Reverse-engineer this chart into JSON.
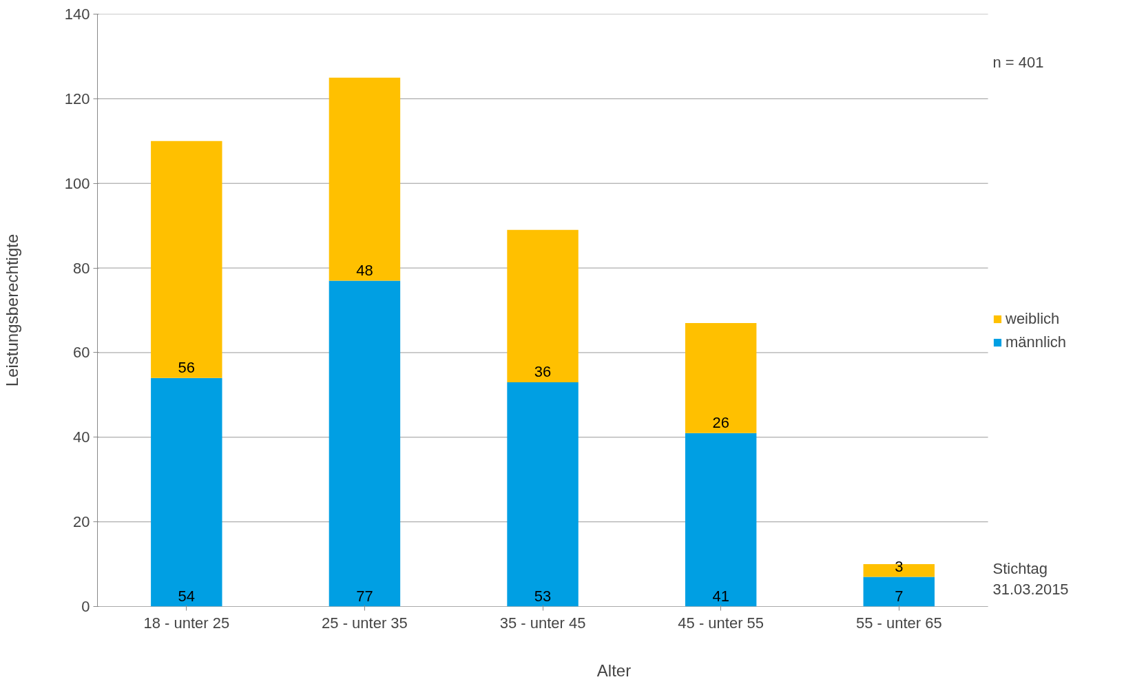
{
  "chart_data": {
    "type": "bar",
    "stacked": true,
    "xlabel": "Alter",
    "ylabel": "Leistungsberechtigte",
    "categories": [
      "18 - unter 25",
      "25 - unter 35",
      "35 - unter 45",
      "45 - unter 55",
      "55 - unter 65"
    ],
    "series": [
      {
        "name": "männlich",
        "color": "#009fe3",
        "values": [
          54,
          77,
          53,
          41,
          7
        ]
      },
      {
        "name": "weiblich",
        "color": "#ffc000",
        "values": [
          56,
          48,
          36,
          26,
          3
        ]
      }
    ],
    "ylim": [
      0,
      140
    ],
    "yticks": [
      0,
      20,
      40,
      60,
      80,
      100,
      120,
      140
    ],
    "grid": "y",
    "legend": "right",
    "data_labels": true,
    "annotations": [
      "n = 401",
      "Stichtag\n31.03.2015"
    ]
  }
}
